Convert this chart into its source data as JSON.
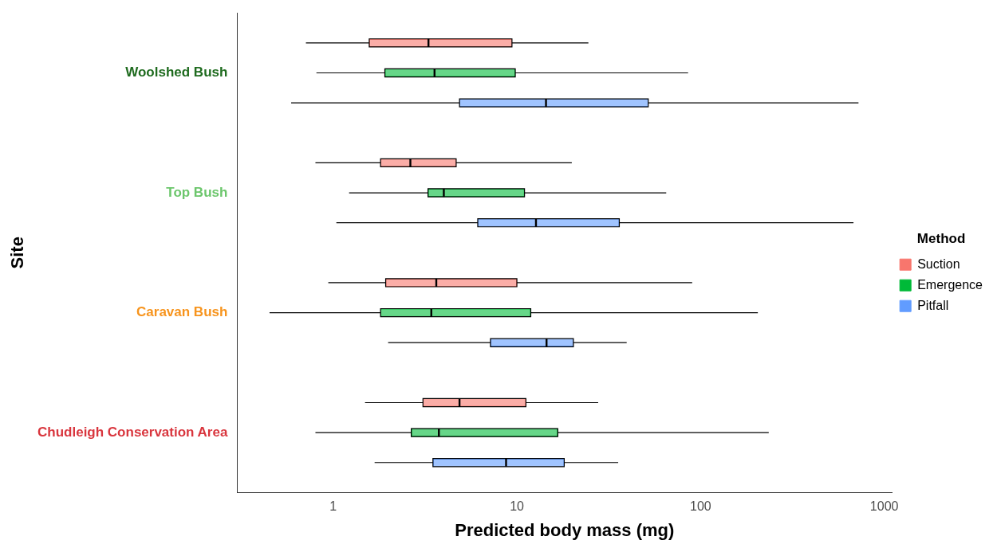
{
  "chart_data": {
    "type": "box",
    "orientation": "horizontal",
    "log": "x",
    "xlabel": "Predicted body mass (mg)",
    "ylabel": "Site",
    "legend_title": "Method",
    "legend": "right",
    "grid": false,
    "categories": [
      "Woolshed Bush",
      "Top Bush",
      "Caravan Bush",
      "Chudleigh Conservation Area"
    ],
    "xlim": [
      0.3,
      1100
    ],
    "xticks": [
      1,
      10,
      100,
      1000
    ],
    "series": [
      {
        "name": "Suction",
        "color": "#f8766d",
        "boxes": [
          {
            "low": 0.71,
            "q1": 1.57,
            "median": 3.3,
            "q3": 9.4,
            "high": 24.5
          },
          {
            "low": 0.8,
            "q1": 1.81,
            "median": 2.63,
            "q3": 4.67,
            "high": 19.9
          },
          {
            "low": 0.94,
            "q1": 1.93,
            "median": 3.64,
            "q3": 10,
            "high": 90
          },
          {
            "low": 1.49,
            "q1": 3.08,
            "median": 4.87,
            "q3": 11.2,
            "high": 27.7
          }
        ]
      },
      {
        "name": "Emergence",
        "color": "#00ba38",
        "boxes": [
          {
            "low": 0.81,
            "q1": 1.91,
            "median": 3.56,
            "q3": 9.8,
            "high": 85.5
          },
          {
            "low": 1.22,
            "q1": 3.28,
            "median": 4,
            "q3": 11,
            "high": 65
          },
          {
            "low": 0.45,
            "q1": 1.81,
            "median": 3.42,
            "q3": 11.9,
            "high": 205
          },
          {
            "low": 0.8,
            "q1": 2.66,
            "median": 3.76,
            "q3": 16.7,
            "high": 235
          }
        ]
      },
      {
        "name": "Pitfall",
        "color": "#619cff",
        "boxes": [
          {
            "low": 0.59,
            "q1": 4.87,
            "median": 14.4,
            "q3": 51.9,
            "high": 724
          },
          {
            "low": 1.04,
            "q1": 6.12,
            "median": 12.7,
            "q3": 36.1,
            "high": 680
          },
          {
            "low": 1.99,
            "q1": 7.18,
            "median": 14.5,
            "q3": 20.3,
            "high": 39.6
          },
          {
            "low": 1.68,
            "q1": 3.49,
            "median": 8.73,
            "q3": 18.1,
            "high": 35.6
          }
        ]
      }
    ]
  }
}
